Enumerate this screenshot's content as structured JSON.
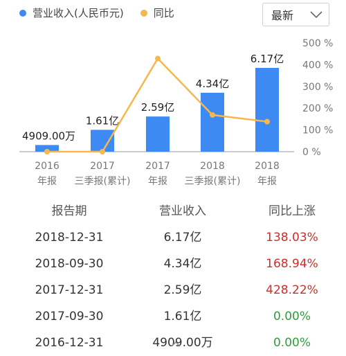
{
  "legend": {
    "revenue_label": "营业收入(人民币元)",
    "revenue_color": "#3d8bf2",
    "yoy_label": "同比",
    "yoy_color": "#f5b74e"
  },
  "dropdown": {
    "label": "最新",
    "icon": "chevron-down-icon"
  },
  "chart_data": {
    "type": "bar",
    "categories": [
      [
        "2016",
        "年报"
      ],
      [
        "2017",
        "三季报(累计)"
      ],
      [
        "2017",
        "年报"
      ],
      [
        "2018",
        "三季报(累计)"
      ],
      [
        "2018",
        "年报"
      ]
    ],
    "series": [
      {
        "name": "营业收入(人民币元)",
        "type": "bar",
        "values": [
          0.4909,
          1.61,
          2.59,
          4.34,
          6.17
        ],
        "labels": [
          "4909.00万",
          "1.61亿",
          "2.59亿",
          "4.34亿",
          "6.17亿"
        ]
      },
      {
        "name": "同比",
        "type": "line",
        "values": [
          0.0,
          0.0,
          428.22,
          168.94,
          138.03
        ]
      }
    ],
    "y2_ticks": [
      "500 %",
      "400 %",
      "300 %",
      "200 %",
      "100 %",
      "0 %"
    ],
    "y2lim": [
      0,
      500
    ],
    "ylim": [
      0,
      7.0
    ]
  },
  "table": {
    "headers": [
      "报告期",
      "营业收入",
      "同比上涨"
    ],
    "rows": [
      {
        "date": "2018-12-31",
        "revenue": "6.17亿",
        "yoy": "138.03%",
        "trend": "up"
      },
      {
        "date": "2018-09-30",
        "revenue": "4.34亿",
        "yoy": "168.94%",
        "trend": "up"
      },
      {
        "date": "2017-12-31",
        "revenue": "2.59亿",
        "yoy": "428.22%",
        "trend": "up"
      },
      {
        "date": "2017-09-30",
        "revenue": "1.61亿",
        "yoy": "0.00%",
        "trend": "flat"
      },
      {
        "date": "2016-12-31",
        "revenue": "4909.00万",
        "yoy": "0.00%",
        "trend": "flat"
      }
    ]
  },
  "footer": {
    "icon": "chevron-up-icon"
  }
}
